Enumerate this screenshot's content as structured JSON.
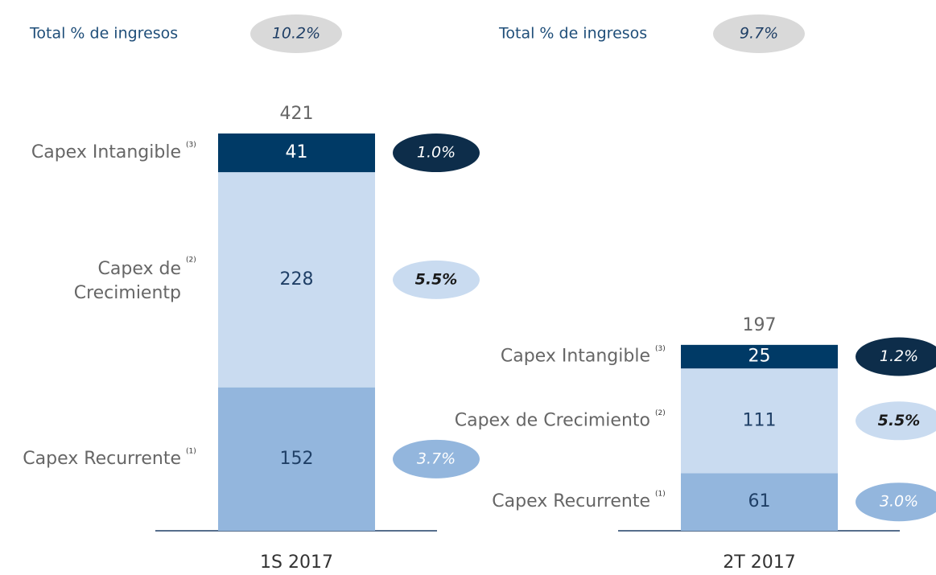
{
  "chart_data": [
    {
      "type": "stacked_bar",
      "header": "Total % de ingresos",
      "total_share": 10.2,
      "total_share_label": "10.2%",
      "categories": [
        "1S 2017"
      ],
      "totals": [
        421
      ],
      "series": [
        {
          "name": "Capex Recurrente",
          "note": "(1)",
          "color": "#93b6dd",
          "values": [
            152
          ],
          "shares": [
            3.7
          ],
          "share_labels": [
            "3.7%"
          ]
        },
        {
          "name": "Capex de Crecimientp",
          "note": "(2)",
          "color": "#c9dbf0",
          "values": [
            228
          ],
          "shares": [
            5.5
          ],
          "share_labels": [
            "5.5%"
          ]
        },
        {
          "name": "Capex Intangible",
          "note": "(3)",
          "color": "#003a66",
          "values": [
            41
          ],
          "shares": [
            1.0
          ],
          "share_labels": [
            "1.0%"
          ]
        }
      ]
    },
    {
      "type": "stacked_bar",
      "header": "Total % de ingresos",
      "total_share": 9.7,
      "total_share_label": "9.7%",
      "categories": [
        "2T 2017"
      ],
      "totals": [
        197
      ],
      "series": [
        {
          "name": "Capex Recurrente",
          "note": "(1)",
          "color": "#93b6dd",
          "values": [
            61
          ],
          "shares": [
            3.0
          ],
          "share_labels": [
            "3.0%"
          ]
        },
        {
          "name": "Capex de Crecimiento",
          "note": "(2)",
          "color": "#c9dbf0",
          "values": [
            111
          ],
          "shares": [
            5.5
          ],
          "share_labels": [
            "5.5%"
          ]
        },
        {
          "name": "Capex Intangible",
          "note": "(3)",
          "color": "#003a66",
          "values": [
            25
          ],
          "shares": [
            1.2
          ],
          "share_labels": [
            "1.2%"
          ]
        }
      ]
    }
  ]
}
